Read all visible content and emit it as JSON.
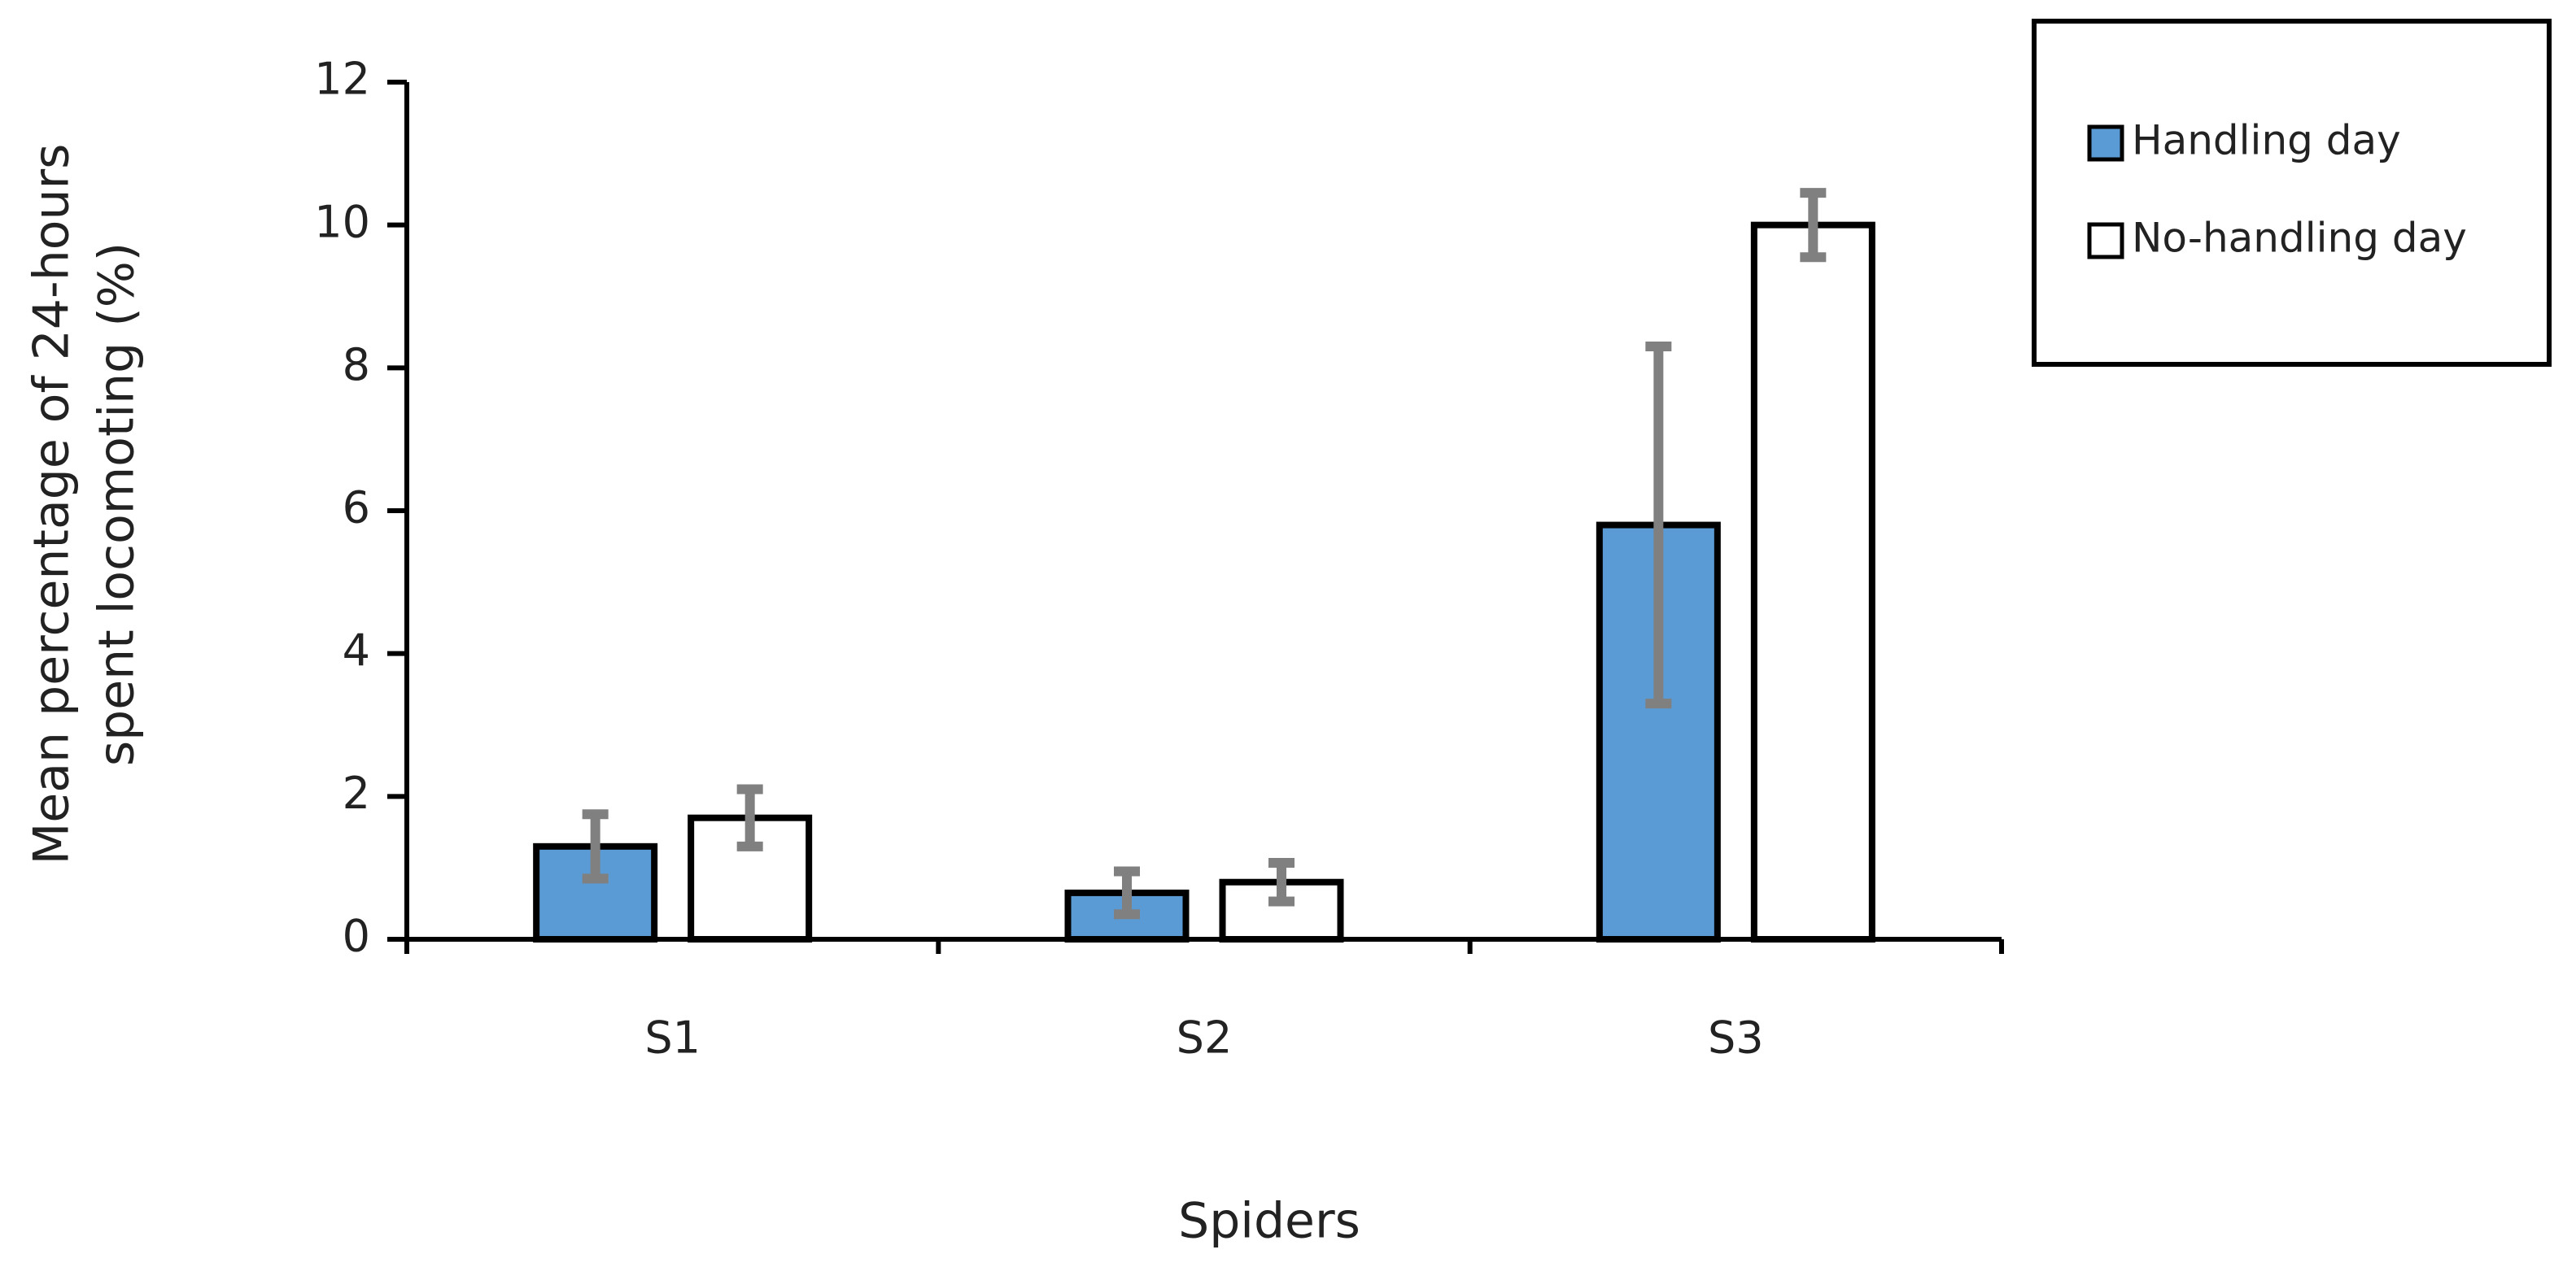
{
  "chart_data": {
    "type": "bar",
    "ylabel": [
      "Mean percentage of 24-hours",
      "spent locomoting (%)"
    ],
    "xlabel": "Spiders",
    "categories": [
      "S1",
      "S2",
      "S3"
    ],
    "series": [
      {
        "name": "Handling day",
        "color": "#5b9bd5",
        "values": [
          1.3,
          0.65,
          5.8
        ],
        "errors": [
          0.45,
          0.3,
          2.5
        ]
      },
      {
        "name": "No-handling day",
        "color": "#ffffff",
        "values": [
          1.7,
          0.8,
          10
        ],
        "errors": [
          0.4,
          0.27,
          0.45
        ]
      }
    ],
    "ylim": [
      0,
      12
    ],
    "yticks": [
      0,
      2,
      4,
      6,
      8,
      10,
      12
    ],
    "error_color": "#808080",
    "legend": "outside-top-right"
  }
}
